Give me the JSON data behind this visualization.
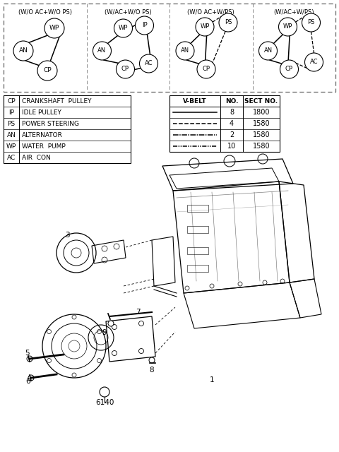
{
  "bg_color": "#ffffff",
  "diagram_titles": [
    "(W/O AC+W/O PS)",
    "(W/AC+W/O PS)",
    "(W/O AC+W/PS)",
    "(W/AC+W/PS)"
  ],
  "legend_left": [
    [
      "CP",
      "CRANKSHAFT  PULLEY"
    ],
    [
      "IP",
      "IDLE PULLEY"
    ],
    [
      "PS",
      "POWER STEERING"
    ],
    [
      "AN",
      "ALTERNATOR"
    ],
    [
      "WP",
      "WATER  PUMP"
    ],
    [
      "AC",
      "AIR  CON"
    ]
  ],
  "legend_right_header": [
    "V-BELT",
    "NO.",
    "SECT NO."
  ],
  "legend_right_rows": [
    [
      "solid",
      "8",
      "1800"
    ],
    [
      "dashed",
      "4",
      "1580"
    ],
    [
      "dashdot",
      "2",
      "1580"
    ],
    [
      "longdashdot",
      "10",
      "1580"
    ]
  ]
}
